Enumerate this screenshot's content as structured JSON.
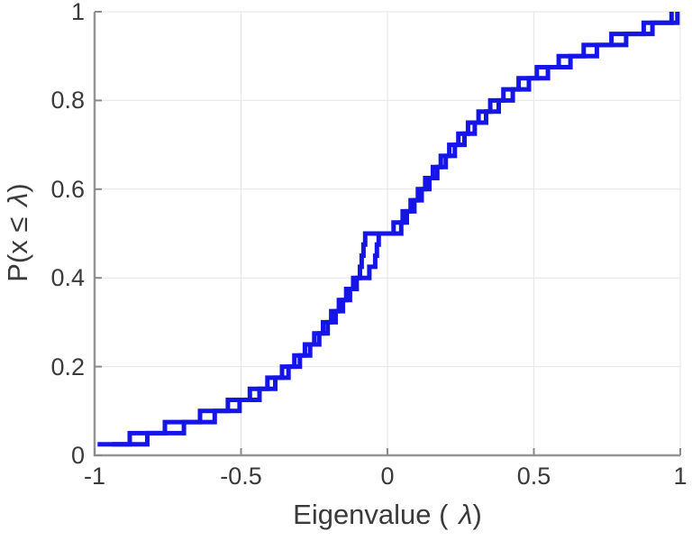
{
  "chart_data": {
    "type": "line",
    "subtype": "ecdf-stairs",
    "title": "",
    "xlabel_prefix": "Eigenvalue (",
    "xlabel_lambda": "λ",
    "xlabel_suffix": ")",
    "xlabel_full": "Eigenvalue ( λ)",
    "ylabel_prefix": "P(x ≤",
    "ylabel_lambda": "λ",
    "ylabel_suffix": ")",
    "ylabel_full": "P(x ≤ λ)",
    "xlim": [
      -1,
      1
    ],
    "ylim": [
      0,
      1
    ],
    "grid": true,
    "box": false,
    "legend": "none",
    "tick_direction": "in",
    "line_width": 5,
    "x_ticks": [
      {
        "value": -1,
        "label": "-1"
      },
      {
        "value": -0.5,
        "label": "-0.5"
      },
      {
        "value": 0,
        "label": "0"
      },
      {
        "value": 0.5,
        "label": "0.5"
      },
      {
        "value": 1,
        "label": "1"
      }
    ],
    "y_ticks": [
      {
        "value": 0,
        "label": "0"
      },
      {
        "value": 0.2,
        "label": "0.2"
      },
      {
        "value": 0.4,
        "label": "0.4"
      },
      {
        "value": 0.6,
        "label": "0.6"
      },
      {
        "value": 0.8,
        "label": "0.8"
      },
      {
        "value": 1,
        "label": "1"
      }
    ],
    "cdf_levels": [
      0.025,
      0.05,
      0.075,
      0.1,
      0.125,
      0.15,
      0.175,
      0.2,
      0.225,
      0.25,
      0.275,
      0.3,
      0.325,
      0.35,
      0.375,
      0.4,
      0.425,
      0.45,
      0.475,
      0.5,
      0.525,
      0.55,
      0.575,
      0.6,
      0.625,
      0.65,
      0.675,
      0.7,
      0.725,
      0.75,
      0.775,
      0.8,
      0.825,
      0.85,
      0.875,
      0.9,
      0.925,
      0.95,
      0.975,
      1.0
    ],
    "series": [
      {
        "name": "ecdf-1",
        "color": "#1515e8",
        "eigenvalues": [
          -0.99,
          -0.88,
          -0.76,
          -0.64,
          -0.545,
          -0.47,
          -0.41,
          -0.36,
          -0.318,
          -0.282,
          -0.25,
          -0.22,
          -0.192,
          -0.166,
          -0.141,
          -0.117,
          -0.094,
          -0.088,
          -0.082,
          -0.076,
          0.047,
          0.052,
          0.079,
          0.104,
          0.129,
          0.155,
          0.182,
          0.211,
          0.242,
          0.275,
          0.311,
          0.351,
          0.396,
          0.448,
          0.51,
          0.585,
          0.67,
          0.765,
          0.875,
          0.97
        ]
      },
      {
        "name": "ecdf-2",
        "color": "#1515e8",
        "eigenvalues": [
          -0.94,
          -0.82,
          -0.695,
          -0.59,
          -0.505,
          -0.437,
          -0.383,
          -0.338,
          -0.299,
          -0.264,
          -0.233,
          -0.204,
          -0.177,
          -0.152,
          -0.128,
          -0.105,
          -0.062,
          -0.042,
          -0.036,
          -0.03,
          0.021,
          0.066,
          0.092,
          0.117,
          0.143,
          0.17,
          0.199,
          0.23,
          0.263,
          0.298,
          0.337,
          0.38,
          0.428,
          0.483,
          0.548,
          0.625,
          0.715,
          0.815,
          0.905,
          0.99
        ]
      }
    ]
  },
  "colors": {
    "background": "#ffffff",
    "curve": "#1515e8",
    "grid": "#e6e6e6",
    "spine": "#959595",
    "tick_mark": "#8a8a8a",
    "tick_label": "#3a3a3a",
    "axis_label": "#3a3a3a"
  }
}
